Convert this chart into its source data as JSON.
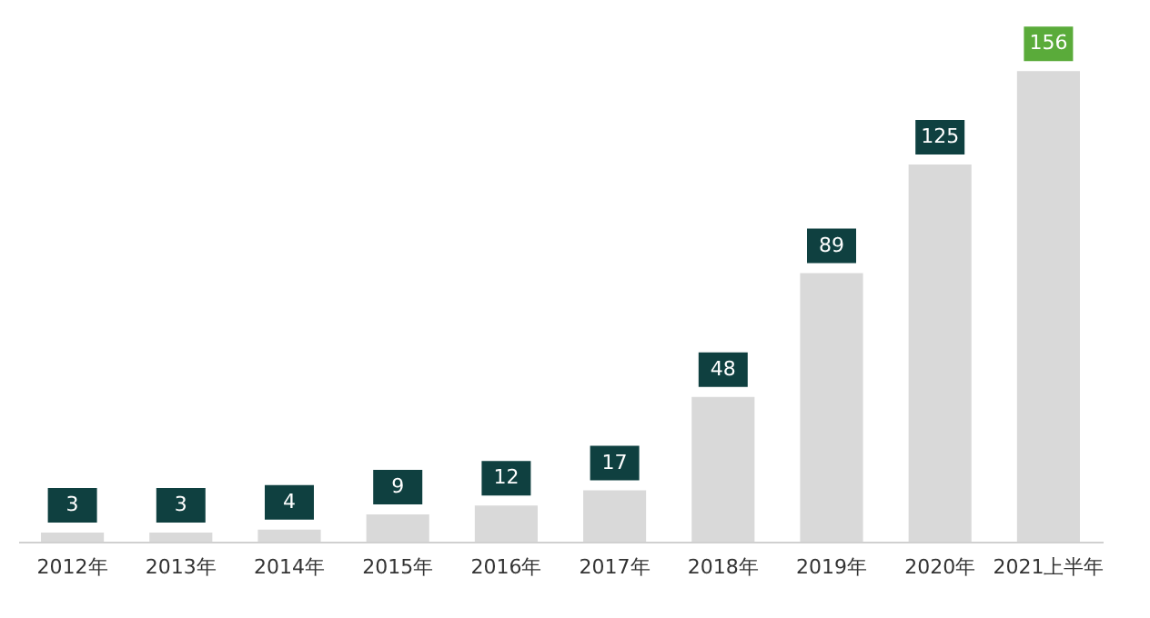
{
  "chart_data": {
    "type": "bar",
    "categories": [
      "2012年",
      "2013年",
      "2014年",
      "2015年",
      "2016年",
      "2017年",
      "2018年",
      "2019年",
      "2020年",
      "2021上半年"
    ],
    "values": [
      3,
      3,
      4,
      9,
      12,
      17,
      48,
      89,
      125,
      156
    ],
    "color": "#d9d9d9",
    "data_labels": true,
    "grid": false
  }
}
